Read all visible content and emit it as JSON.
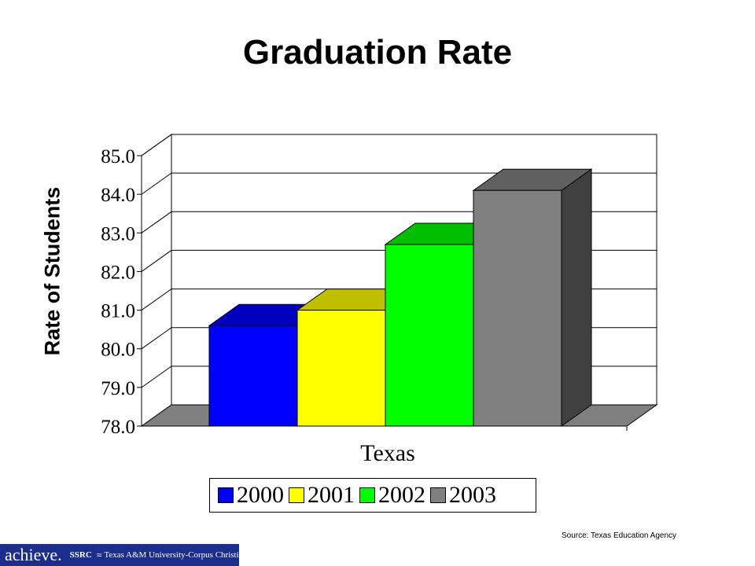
{
  "chart_data": {
    "type": "bar",
    "title": "Graduation Rate",
    "ylabel": "Rate of Students",
    "xlabel": "",
    "categories": [
      "Texas"
    ],
    "ylim": [
      78.0,
      85.0
    ],
    "yticks": [
      "78.0",
      "79.0",
      "80.0",
      "81.0",
      "82.0",
      "83.0",
      "84.0",
      "85.0"
    ],
    "series": [
      {
        "name": "2000",
        "values": [
          80.6
        ],
        "color": "#0000ff"
      },
      {
        "name": "2001",
        "values": [
          81.0
        ],
        "color": "#ffff00"
      },
      {
        "name": "2002",
        "values": [
          82.7
        ],
        "color": "#00ff00"
      },
      {
        "name": "2003",
        "values": [
          84.1
        ],
        "color": "#808080"
      }
    ],
    "grid": true,
    "legend_position": "bottom",
    "three_d": true
  },
  "source": "Source: Texas Education Agency",
  "footer": {
    "logo_text": "achieve.",
    "org1": "SSRC",
    "org2": "Texas A&M University-Corpus Christi",
    "background": "#1c2e8c"
  }
}
